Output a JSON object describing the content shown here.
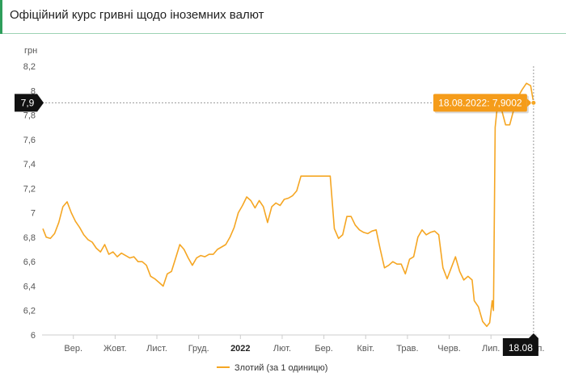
{
  "header": {
    "title": "Офіційний курс гривні щодо іноземних валют"
  },
  "chart_data": {
    "type": "line",
    "ylabel": "грн",
    "ylim": [
      6,
      8.2
    ],
    "y_ticks": [
      "8,2",
      "8",
      "7,8",
      "7,6",
      "7,4",
      "7,2",
      "7",
      "6,8",
      "6,6",
      "6,4",
      "6,2",
      "6"
    ],
    "y_tick_values": [
      8.2,
      8,
      7.8,
      7.6,
      7.4,
      7.2,
      7,
      6.8,
      6.6,
      6.4,
      6.2,
      6
    ],
    "x_ticks": [
      {
        "label": "Вер.",
        "pos": 1.0,
        "bold": false
      },
      {
        "label": "Жовт.",
        "pos": 2.0,
        "bold": false
      },
      {
        "label": "Лист.",
        "pos": 3.0,
        "bold": false
      },
      {
        "label": "Груд.",
        "pos": 4.0,
        "bold": false
      },
      {
        "label": "2022",
        "pos": 5.0,
        "bold": true
      },
      {
        "label": "Лют.",
        "pos": 6.0,
        "bold": false
      },
      {
        "label": "Бер.",
        "pos": 7.0,
        "bold": false
      },
      {
        "label": "Квіт.",
        "pos": 8.0,
        "bold": false
      },
      {
        "label": "Трав.",
        "pos": 9.0,
        "bold": false
      },
      {
        "label": "Черв.",
        "pos": 10.0,
        "bold": false
      },
      {
        "label": "Лип.",
        "pos": 11.0,
        "bold": false
      },
      {
        "label": "Серп.",
        "pos": 12.0,
        "bold": false
      }
    ],
    "x_range": [
      0.25,
      12.1
    ],
    "series": [
      {
        "name": "Злотий (за 1 одиницю)",
        "color": "#f5a623",
        "points": [
          [
            0.27,
            6.87
          ],
          [
            0.35,
            6.8
          ],
          [
            0.45,
            6.79
          ],
          [
            0.55,
            6.83
          ],
          [
            0.65,
            6.92
          ],
          [
            0.75,
            7.05
          ],
          [
            0.85,
            7.09
          ],
          [
            0.95,
            7.0
          ],
          [
            1.05,
            6.93
          ],
          [
            1.15,
            6.88
          ],
          [
            1.25,
            6.82
          ],
          [
            1.35,
            6.78
          ],
          [
            1.45,
            6.76
          ],
          [
            1.55,
            6.71
          ],
          [
            1.65,
            6.68
          ],
          [
            1.75,
            6.74
          ],
          [
            1.85,
            6.66
          ],
          [
            1.95,
            6.68
          ],
          [
            2.05,
            6.64
          ],
          [
            2.15,
            6.67
          ],
          [
            2.25,
            6.65
          ],
          [
            2.35,
            6.63
          ],
          [
            2.45,
            6.64
          ],
          [
            2.55,
            6.6
          ],
          [
            2.65,
            6.6
          ],
          [
            2.75,
            6.57
          ],
          [
            2.85,
            6.48
          ],
          [
            2.95,
            6.46
          ],
          [
            3.05,
            6.43
          ],
          [
            3.15,
            6.4
          ],
          [
            3.25,
            6.5
          ],
          [
            3.35,
            6.52
          ],
          [
            3.45,
            6.63
          ],
          [
            3.55,
            6.74
          ],
          [
            3.65,
            6.7
          ],
          [
            3.75,
            6.63
          ],
          [
            3.85,
            6.57
          ],
          [
            3.95,
            6.63
          ],
          [
            4.05,
            6.65
          ],
          [
            4.15,
            6.64
          ],
          [
            4.25,
            6.66
          ],
          [
            4.35,
            6.66
          ],
          [
            4.45,
            6.7
          ],
          [
            4.55,
            6.72
          ],
          [
            4.65,
            6.74
          ],
          [
            4.75,
            6.8
          ],
          [
            4.85,
            6.88
          ],
          [
            4.95,
            7.0
          ],
          [
            5.05,
            7.06
          ],
          [
            5.15,
            7.13
          ],
          [
            5.25,
            7.1
          ],
          [
            5.35,
            7.04
          ],
          [
            5.45,
            7.1
          ],
          [
            5.55,
            7.05
          ],
          [
            5.65,
            6.92
          ],
          [
            5.75,
            7.05
          ],
          [
            5.85,
            7.08
          ],
          [
            5.95,
            7.06
          ],
          [
            6.05,
            7.11
          ],
          [
            6.15,
            7.12
          ],
          [
            6.25,
            7.14
          ],
          [
            6.35,
            7.18
          ],
          [
            6.45,
            7.3
          ],
          [
            6.55,
            7.3
          ],
          [
            6.65,
            7.3
          ],
          [
            6.75,
            7.3
          ],
          [
            6.85,
            7.3
          ],
          [
            6.95,
            7.3
          ],
          [
            7.05,
            7.3
          ],
          [
            7.15,
            7.3
          ],
          [
            7.25,
            6.87
          ],
          [
            7.35,
            6.79
          ],
          [
            7.45,
            6.82
          ],
          [
            7.55,
            6.97
          ],
          [
            7.65,
            6.97
          ],
          [
            7.75,
            6.9
          ],
          [
            7.85,
            6.86
          ],
          [
            7.95,
            6.84
          ],
          [
            8.05,
            6.83
          ],
          [
            8.15,
            6.85
          ],
          [
            8.25,
            6.86
          ],
          [
            8.35,
            6.7
          ],
          [
            8.45,
            6.55
          ],
          [
            8.55,
            6.57
          ],
          [
            8.65,
            6.6
          ],
          [
            8.75,
            6.58
          ],
          [
            8.85,
            6.58
          ],
          [
            8.95,
            6.5
          ],
          [
            9.05,
            6.62
          ],
          [
            9.15,
            6.64
          ],
          [
            9.25,
            6.8
          ],
          [
            9.35,
            6.86
          ],
          [
            9.45,
            6.82
          ],
          [
            9.55,
            6.84
          ],
          [
            9.65,
            6.85
          ],
          [
            9.75,
            6.82
          ],
          [
            9.85,
            6.55
          ],
          [
            9.95,
            6.46
          ],
          [
            10.05,
            6.55
          ],
          [
            10.15,
            6.64
          ],
          [
            10.25,
            6.52
          ],
          [
            10.35,
            6.45
          ],
          [
            10.45,
            6.48
          ],
          [
            10.55,
            6.45
          ],
          [
            10.6,
            6.28
          ],
          [
            10.7,
            6.23
          ],
          [
            10.8,
            6.11
          ],
          [
            10.9,
            6.07
          ],
          [
            10.97,
            6.1
          ],
          [
            11.03,
            6.28
          ],
          [
            11.06,
            6.2
          ],
          [
            11.1,
            7.7
          ],
          [
            11.15,
            7.86
          ],
          [
            11.25,
            7.85
          ],
          [
            11.35,
            7.72
          ],
          [
            11.45,
            7.72
          ],
          [
            11.55,
            7.85
          ],
          [
            11.65,
            7.95
          ],
          [
            11.75,
            8.01
          ],
          [
            11.85,
            8.06
          ],
          [
            11.95,
            8.04
          ],
          [
            12.02,
            7.9
          ]
        ]
      }
    ],
    "highlight": {
      "x": 12.02,
      "y": 7.9,
      "tooltip": "18.08.2022: 7,9002",
      "y_label": "7,9",
      "x_label": "18.08"
    },
    "legend_position": "bottom-center",
    "grid": false
  }
}
